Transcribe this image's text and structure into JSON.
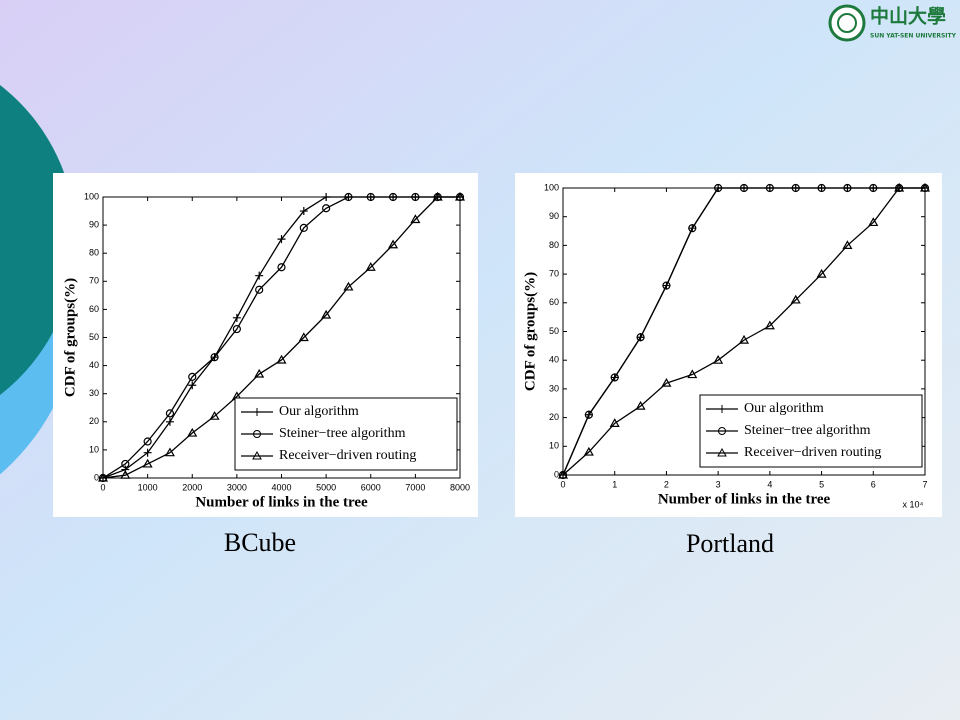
{
  "header": {
    "logo_name": "中山大學",
    "logo_subtitle": "SUN YAT-SEN UNIVERSITY"
  },
  "chart_data": [
    {
      "type": "line",
      "title": "BCube",
      "x_label": "Number of links in the tree",
      "y_label": "CDF of groups(%)",
      "x": [
        0,
        500,
        1000,
        1500,
        2000,
        2500,
        3000,
        3500,
        4000,
        4500,
        5000,
        5500,
        6000,
        6500,
        7000,
        7500,
        8000
      ],
      "xlim": [
        0,
        8000
      ],
      "xticks": [
        0,
        1000,
        2000,
        3000,
        4000,
        5000,
        6000,
        7000,
        8000
      ],
      "ylim": [
        0,
        100
      ],
      "yticks": [
        0,
        10,
        20,
        30,
        40,
        50,
        60,
        70,
        80,
        90,
        100
      ],
      "legend": "lower right",
      "series": [
        {
          "name": "Our algorithm",
          "color": "#000000",
          "marker": "+",
          "values": [
            0,
            3,
            9,
            20,
            33,
            43,
            57,
            72,
            85,
            95,
            100,
            100,
            100,
            100,
            100,
            100,
            100
          ]
        },
        {
          "name": "Steiner−tree algorithm",
          "color": "#000000",
          "marker": "o",
          "values": [
            0,
            5,
            13,
            23,
            36,
            43,
            53,
            67,
            75,
            89,
            96,
            100,
            100,
            100,
            100,
            100,
            100
          ]
        },
        {
          "name": "Receiver−driven routing",
          "color": "#000000",
          "marker": "^",
          "values": [
            0,
            1,
            5,
            9,
            16,
            22,
            29,
            37,
            42,
            50,
            58,
            68,
            75,
            83,
            92,
            100,
            100
          ]
        }
      ]
    },
    {
      "type": "line",
      "title": "Portland",
      "x_label": "Number of links in the tree",
      "y_label": "CDF of groups(%)",
      "x_scale_label": "x 10⁴",
      "x": [
        0,
        0.5,
        1,
        1.5,
        2,
        2.5,
        3,
        3.5,
        4,
        4.5,
        5,
        5.5,
        6,
        6.5,
        7
      ],
      "xlim": [
        0,
        7
      ],
      "xticks": [
        0,
        1,
        2,
        3,
        4,
        5,
        6,
        7
      ],
      "ylim": [
        0,
        100
      ],
      "yticks": [
        0,
        10,
        20,
        30,
        40,
        50,
        60,
        70,
        80,
        90,
        100
      ],
      "legend": "lower right",
      "series": [
        {
          "name": "Our algorithm",
          "color": "#000000",
          "marker": "+",
          "values": [
            0,
            21,
            34,
            48,
            66,
            86,
            100,
            100,
            100,
            100,
            100,
            100,
            100,
            100,
            100
          ]
        },
        {
          "name": "Steiner−tree algorithm",
          "color": "#000000",
          "marker": "o",
          "values": [
            0,
            21,
            34,
            48,
            66,
            86,
            100,
            100,
            100,
            100,
            100,
            100,
            100,
            100,
            100
          ]
        },
        {
          "name": "Receiver−driven routing",
          "color": "#000000",
          "marker": "^",
          "values": [
            0,
            8,
            18,
            24,
            32,
            35,
            40,
            47,
            52,
            61,
            70,
            80,
            88,
            100,
            100
          ]
        }
      ]
    }
  ]
}
